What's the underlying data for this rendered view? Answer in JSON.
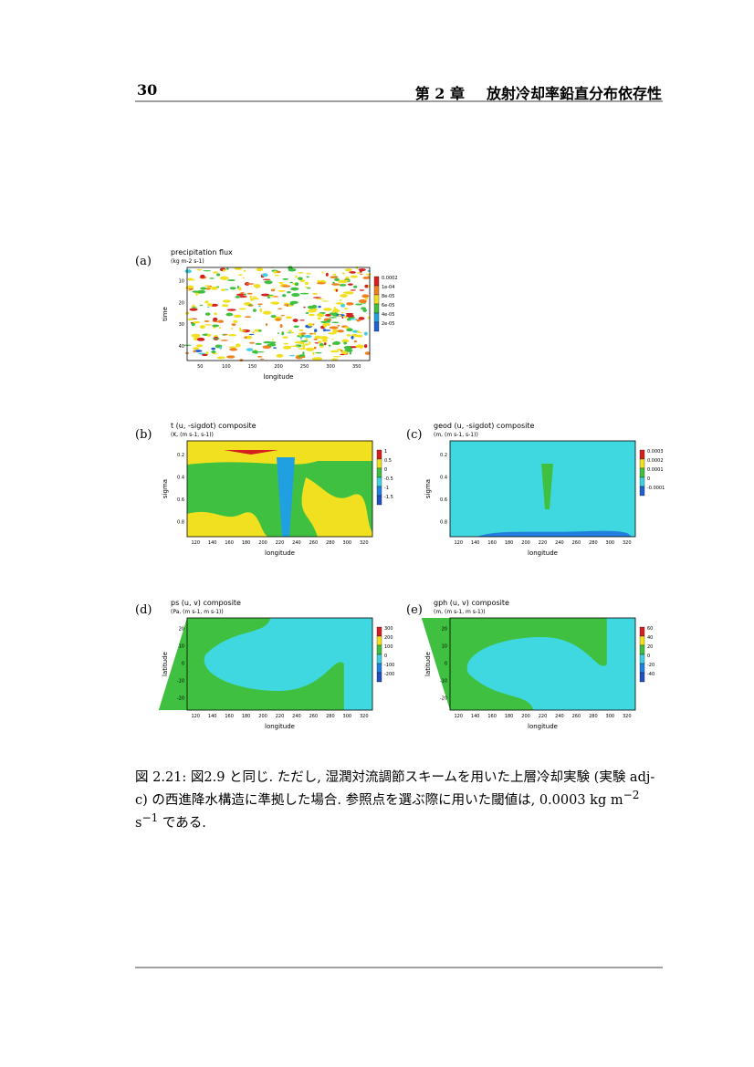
{
  "header": {
    "page_number": "30",
    "chapter": "第 2 章",
    "chapter_title": "放射冷却率鉛直分布依存性"
  },
  "figure": {
    "panels": [
      {
        "label": "(a)",
        "title": "precipitation flux",
        "units": "(kg m-2 s-1)",
        "x_label": "longitude",
        "y_label": "time",
        "x_ticks": [
          "50",
          "100",
          "150",
          "200",
          "250",
          "300",
          "350"
        ],
        "y_ticks": [
          "10",
          "20",
          "30",
          "40"
        ],
        "colorbar": [
          "0.0002",
          "1e-04",
          "8e-05",
          "6e-05",
          "4e-05",
          "2e-05"
        ]
      },
      {
        "label": "(b)",
        "title": "t (u, -sigdot) composite",
        "units": "(K, (m s-1, s-1))",
        "x_label": "longitude",
        "y_label": "sigma",
        "x_ticks": [
          "120",
          "140",
          "160",
          "180",
          "200",
          "220",
          "240",
          "260",
          "280",
          "300",
          "320"
        ],
        "y_ticks": [
          "0.2",
          "0.4",
          "0.6",
          "0.8"
        ],
        "colorbar": [
          "1",
          "0.5",
          "0",
          "-0.5",
          "-1",
          "-1.5"
        ]
      },
      {
        "label": "(c)",
        "title": "geod (u, -sigdot) composite",
        "units": "(m, (m s-1, s-1))",
        "x_label": "longitude",
        "y_label": "sigma",
        "x_ticks": [
          "120",
          "140",
          "160",
          "180",
          "200",
          "220",
          "240",
          "260",
          "280",
          "300",
          "320"
        ],
        "y_ticks": [
          "0.2",
          "0.4",
          "0.6",
          "0.8"
        ],
        "colorbar": [
          "0.0003",
          "0.0002",
          "0.0001",
          "0",
          "-0.0001"
        ]
      },
      {
        "label": "(d)",
        "title": "ps (u, v) composite",
        "units": "(Pa, (m s-1, m s-1))",
        "x_label": "longitude",
        "y_label": "latitude",
        "x_ticks": [
          "120",
          "140",
          "160",
          "180",
          "200",
          "220",
          "240",
          "260",
          "280",
          "300",
          "320"
        ],
        "y_ticks": [
          "20",
          "10",
          "0",
          "-10",
          "-20"
        ],
        "colorbar": [
          "300",
          "200",
          "100",
          "0",
          "-100",
          "-200"
        ]
      },
      {
        "label": "(e)",
        "title": "gph (u, v) composite",
        "units": "(m, (m s-1, m s-1))",
        "x_label": "longitude",
        "y_label": "latitude",
        "x_ticks": [
          "120",
          "140",
          "160",
          "180",
          "200",
          "220",
          "240",
          "260",
          "280",
          "300",
          "320"
        ],
        "y_ticks": [
          "20",
          "10",
          "0",
          "-10",
          "-20"
        ],
        "colorbar": [
          "60",
          "40",
          "20",
          "0",
          "-20",
          "-40"
        ]
      }
    ]
  },
  "caption": {
    "text": "図 2.21: 図2.9 と同じ. ただし, 湿潤対流調節スキームを用いた上層冷却実験 (実験 adj-c) の西進降水構造に準拠した場合. 参照点を選ぶ際に用いた閾値は, 0.0003 kg m",
    "exp1": "−2",
    "mid": " s",
    "exp2": "−1",
    "end": " である."
  }
}
